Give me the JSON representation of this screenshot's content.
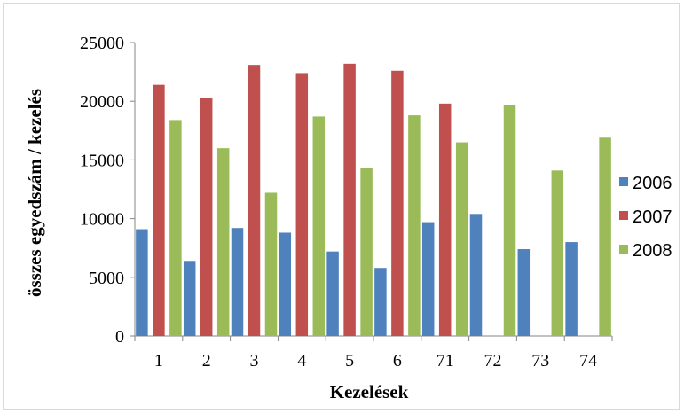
{
  "chart_data": {
    "type": "bar",
    "title": "",
    "xlabel": "Kezelések",
    "ylabel": "összes egyedszám / kezelés",
    "categories": [
      "1",
      "2",
      "3",
      "4",
      "5",
      "6",
      "71",
      "72",
      "73",
      "74"
    ],
    "series": [
      {
        "name": "2006",
        "color": "#4f81bd",
        "values": [
          9100,
          6400,
          9200,
          8800,
          7200,
          5800,
          9700,
          10400,
          7400,
          8000
        ]
      },
      {
        "name": "2007",
        "color": "#c0504d",
        "values": [
          21400,
          20300,
          23100,
          22400,
          23200,
          22600,
          19800,
          null,
          null,
          null
        ]
      },
      {
        "name": "2008",
        "color": "#9bbb59",
        "values": [
          18400,
          16000,
          12200,
          18700,
          14300,
          18800,
          16500,
          19700,
          14100,
          16900
        ]
      }
    ],
    "ylim": [
      0,
      25000
    ],
    "yticks": [
      "0",
      "5000",
      "10000",
      "15000",
      "20000",
      "25000"
    ],
    "grid": false,
    "legend_position": "right"
  }
}
